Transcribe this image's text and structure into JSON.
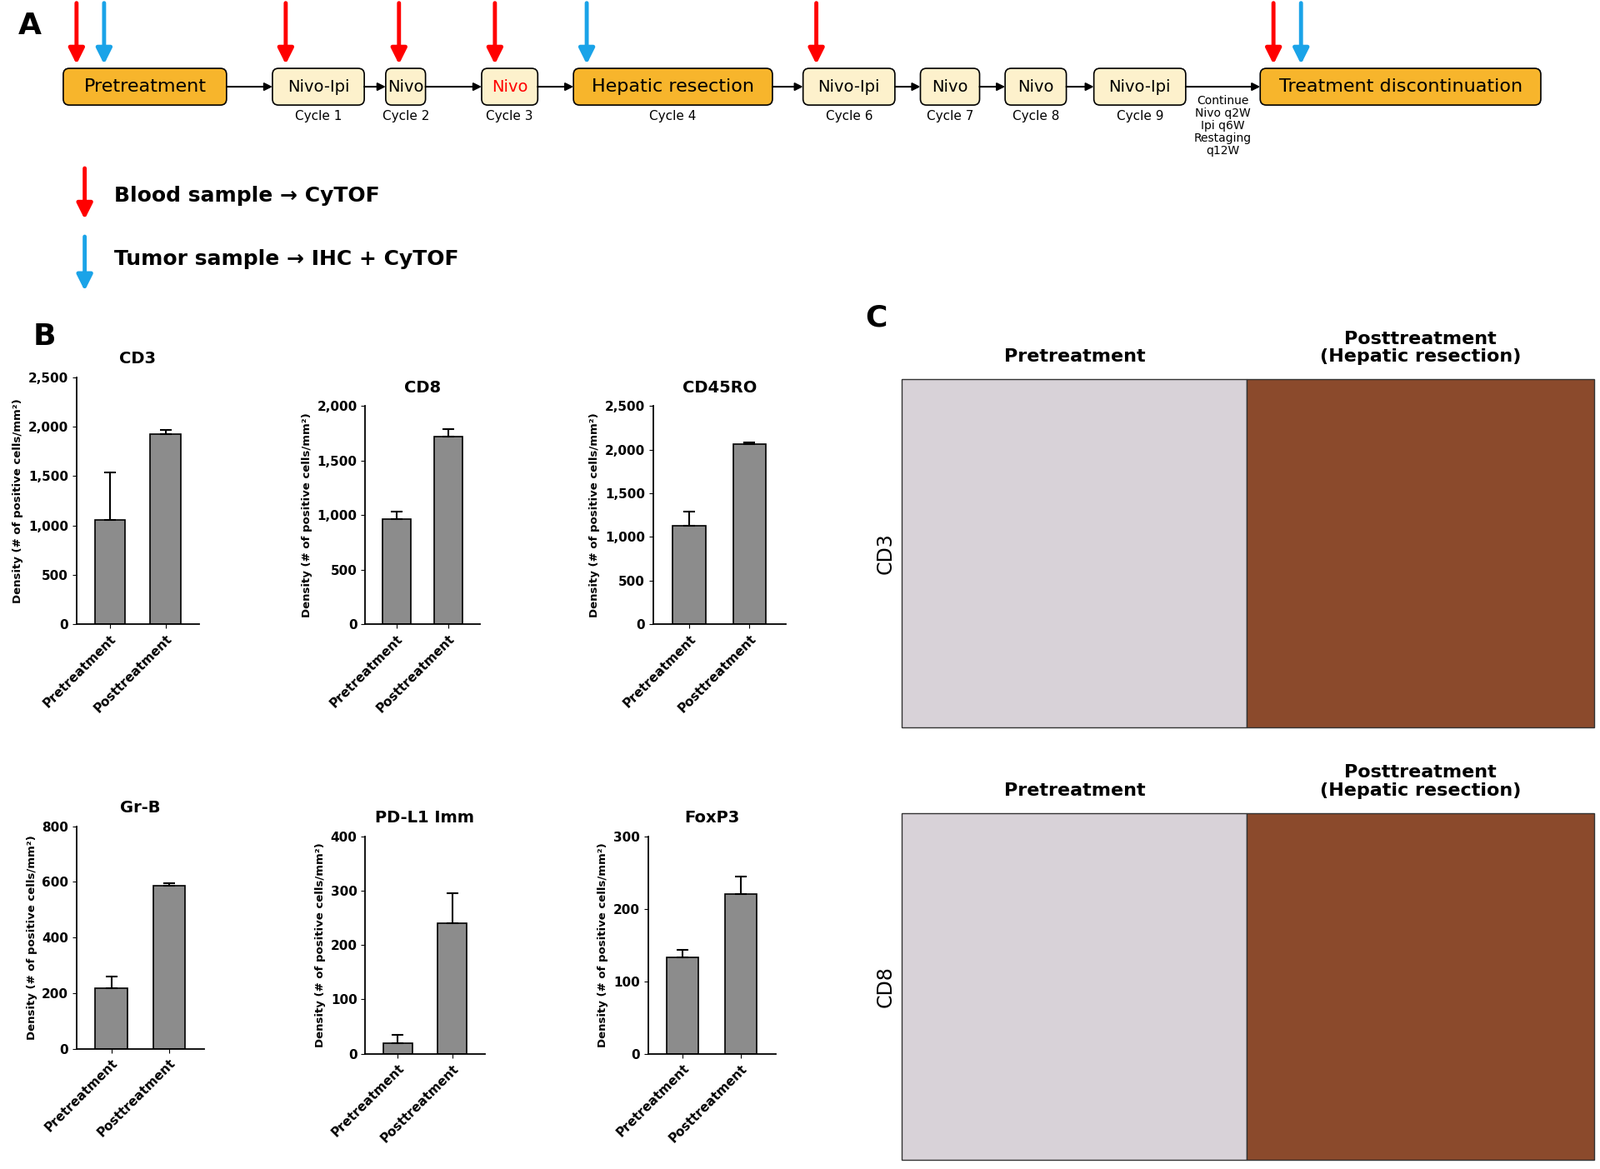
{
  "panel_labels": [
    "A",
    "B",
    "C"
  ],
  "timeline": {
    "nodes": [
      {
        "label": "Pretreatment",
        "kind": "stage",
        "cycle": null,
        "blood": true,
        "tumor": true
      },
      {
        "label": "Nivo-Ipi",
        "kind": "treatment",
        "cycle": "Cycle 1",
        "blood": true,
        "tumor": false
      },
      {
        "label": "Nivo",
        "kind": "treatment",
        "cycle": "Cycle 2",
        "blood": true,
        "tumor": false
      },
      {
        "label": "Nivo",
        "kind": "treatment",
        "cycle": "Cycle 3",
        "blood": true,
        "tumor": false,
        "text_color": "red"
      },
      {
        "label": "Hepatic resection",
        "kind": "stage",
        "cycle": "Cycle 4",
        "blood": false,
        "tumor": true
      },
      {
        "label": "Nivo-Ipi",
        "kind": "treatment",
        "cycle": "Cycle 6",
        "blood": true,
        "tumor": false
      },
      {
        "label": "Nivo",
        "kind": "treatment",
        "cycle": "Cycle 7",
        "blood": false,
        "tumor": false
      },
      {
        "label": "Nivo",
        "kind": "treatment",
        "cycle": "Cycle 8",
        "blood": false,
        "tumor": false
      },
      {
        "label": "Nivo-Ipi",
        "kind": "treatment",
        "cycle": "Cycle 9",
        "blood": false,
        "tumor": false
      },
      {
        "label": "Treatment discontinuation",
        "kind": "stage",
        "cycle": null,
        "blood": true,
        "tumor": true
      }
    ],
    "continuation_note": "Continue\nNivo q2W\nIpi q6W\nRestaging\nq12W",
    "legend": [
      {
        "marker": "blood",
        "color": "red",
        "text": "Blood sample → CyTOF"
      },
      {
        "marker": "tumor",
        "color": "#1aa3e8",
        "text": "Tumor sample → IHC + CyTOF"
      }
    ]
  },
  "chart_data": [
    {
      "type": "bar",
      "title": "CD3",
      "categories": [
        "Pretreatment",
        "Posttreatment"
      ],
      "values": [
        1060,
        1930
      ],
      "errors": [
        480,
        40
      ],
      "color": "#8c8c8c",
      "y_label": "Density (# of positive cells/mm²)",
      "ylim": [
        0,
        2500
      ],
      "yticks": [
        0,
        500,
        {
          "value": 1000,
          "label": "1,000"
        },
        {
          "value": 1500,
          "label": "1,500"
        },
        {
          "value": 2000,
          "label": "2,000"
        },
        {
          "value": 2500,
          "label": "2,500"
        }
      ]
    },
    {
      "type": "bar",
      "title": "CD8",
      "categories": [
        "Pretreatment",
        "Posttreatment"
      ],
      "values": [
        960,
        1720
      ],
      "errors": [
        70,
        70
      ],
      "color": "#8c8c8c",
      "y_label": "Density (# of positive cells/mm²)",
      "ylim": [
        0,
        2000
      ],
      "yticks": [
        0,
        500,
        {
          "value": 1000,
          "label": "1,000"
        },
        {
          "value": 1500,
          "label": "1,500"
        },
        {
          "value": 2000,
          "label": "2,000"
        }
      ]
    },
    {
      "type": "bar",
      "title": "CD45RO",
      "categories": [
        "Pretreatment",
        "Posttreatment"
      ],
      "values": [
        1130,
        2060
      ],
      "errors": [
        160,
        20
      ],
      "color": "#8c8c8c",
      "y_label": "Density (# of positive cells/mm²)",
      "ylim": [
        0,
        2500
      ],
      "yticks": [
        0,
        500,
        {
          "value": 1000,
          "label": "1,000"
        },
        {
          "value": 1500,
          "label": "1,500"
        },
        {
          "value": 2000,
          "label": "2,000"
        },
        {
          "value": 2500,
          "label": "2,500"
        }
      ]
    },
    {
      "type": "bar",
      "title": "Gr-B",
      "categories": [
        "Pretreatment",
        "Posttreatment"
      ],
      "values": [
        218,
        585
      ],
      "errors": [
        40,
        10
      ],
      "color": "#8c8c8c",
      "y_label": "Density (# of positive cells/mm²)",
      "ylim": [
        0,
        800
      ],
      "yticks": [
        0,
        200,
        400,
        600,
        800
      ]
    },
    {
      "type": "bar",
      "title": "PD-L1 Imm",
      "categories": [
        "Pretreatment",
        "Posttreatment"
      ],
      "values": [
        20,
        240
      ],
      "errors": [
        15,
        55
      ],
      "color": "#8c8c8c",
      "y_label": "Density (# of positive cells/mm²)",
      "ylim": [
        0,
        400
      ],
      "yticks": [
        0,
        100,
        200,
        300,
        400
      ]
    },
    {
      "type": "bar",
      "title": "FoxP3",
      "categories": [
        "Pretreatment",
        "Posttreatment"
      ],
      "values": [
        133,
        220
      ],
      "errors": [
        10,
        25
      ],
      "color": "#8c8c8c",
      "y_label": "Density (# of positive cells/mm²)",
      "ylim": [
        0,
        300
      ],
      "yticks": [
        0,
        100,
        200,
        300
      ]
    }
  ],
  "images": {
    "columns": [
      "Pretreatment",
      "Posttreatment\n(Hepatic resection)"
    ],
    "rows": [
      "CD3",
      "CD8"
    ]
  }
}
